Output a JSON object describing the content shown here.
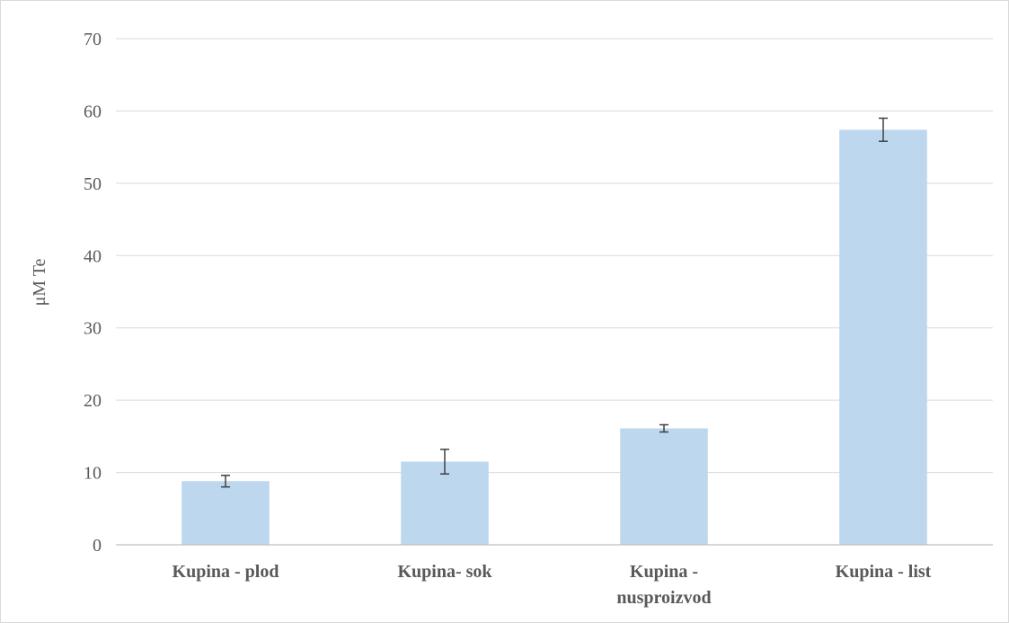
{
  "chart_data": {
    "type": "bar",
    "categories": [
      [
        "Kupina - plod"
      ],
      [
        "Kupina- sok"
      ],
      [
        "Kupina -",
        "nusproizvod"
      ],
      [
        "Kupina - list"
      ]
    ],
    "values": [
      8.8,
      11.5,
      16.1,
      57.4
    ],
    "error": [
      0.8,
      1.7,
      0.5,
      1.6
    ],
    "title": "",
    "xlabel": "",
    "ylabel": "μM Te",
    "ylim": [
      0,
      70
    ],
    "yticks": [
      0,
      10,
      20,
      30,
      40,
      50,
      60,
      70
    ],
    "grid": true,
    "legend": "none",
    "colors": {
      "bar": "#bdd7ee",
      "error_bar": "#404040",
      "grid": "#d9d9d9",
      "text": "#595959"
    }
  }
}
